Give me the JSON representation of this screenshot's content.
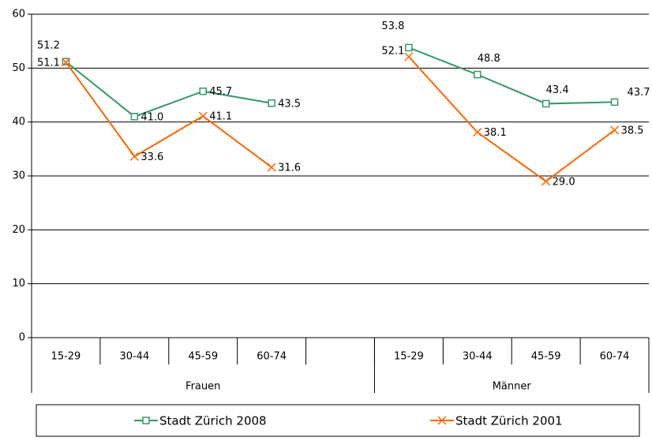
{
  "chart_data": {
    "type": "line",
    "categories": [
      "15-29",
      "30-44",
      "45-59",
      "60-74",
      null,
      "15-29",
      "30-44",
      "45-59",
      "60-74"
    ],
    "groups": [
      {
        "name": "Frauen",
        "count": 5
      },
      {
        "name": "Männer",
        "count": 4
      }
    ],
    "series": [
      {
        "name": "Stadt Zürich 2008",
        "color": "#339966",
        "marker": "square",
        "values": [
          51.2,
          41.0,
          45.7,
          43.5,
          null,
          53.8,
          48.8,
          43.4,
          43.7
        ],
        "value_labels": [
          "51.2",
          "41.0",
          "45.7",
          "43.5",
          null,
          "53.8",
          "48.8",
          "43.4",
          "43.7"
        ]
      },
      {
        "name": "Stadt Zürich 2001",
        "color": "#ff6600",
        "marker": "x",
        "values": [
          51.1,
          33.6,
          41.1,
          31.6,
          null,
          52.1,
          38.1,
          29.0,
          38.5
        ],
        "value_labels": [
          "51.1",
          "33.6",
          "41.1",
          "31.6",
          null,
          "52.1",
          "38.1",
          "29.0",
          "38.5"
        ]
      }
    ],
    "ylim": [
      0,
      60
    ],
    "yticks": [
      0,
      10,
      20,
      30,
      40,
      50,
      60
    ],
    "grid": true,
    "legend": "bottom"
  }
}
